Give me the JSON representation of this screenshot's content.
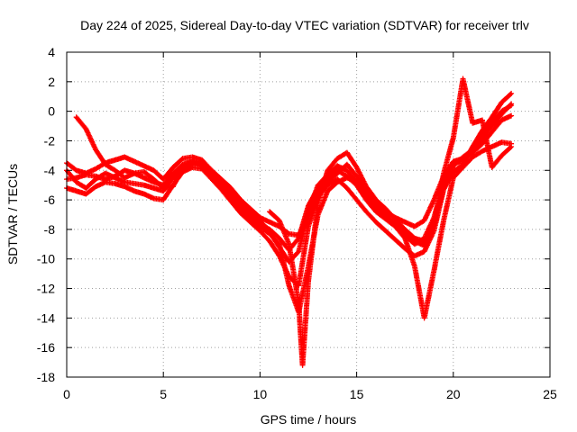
{
  "chart_data": {
    "type": "scatter",
    "title": "Day 224 of 2025, Sidereal Day-to-day VTEC variation (SDTVAR) for receiver trlv",
    "xlabel": "GPS time / hours",
    "ylabel": "SDTVAR / TECUs",
    "xlim": [
      0,
      25
    ],
    "ylim": [
      -18,
      4
    ],
    "x_ticks": [
      "0",
      "5",
      "10",
      "15",
      "20",
      "25"
    ],
    "y_ticks": [
      "4",
      "2",
      "0",
      "-2",
      "-4",
      "-6",
      "-8",
      "-10",
      "-12",
      "-14",
      "-16",
      "-18"
    ],
    "grid": true,
    "marker": "plus",
    "color": "#ff0000",
    "series": [
      {
        "x": [
          0,
          0.5,
          1,
          1.5,
          2,
          2.5,
          3,
          3.5,
          4,
          4.5,
          5,
          5.5,
          6,
          6.5,
          7,
          7.5,
          8,
          8.5,
          9,
          9.5,
          10,
          10.5,
          11,
          11.5,
          12,
          12.5,
          13,
          13.5,
          14,
          14.5,
          15,
          15.5,
          16,
          16.5,
          17,
          17.5,
          18,
          18.5,
          19,
          19.5,
          20,
          20.5,
          21,
          21.5,
          22,
          22.5,
          23
        ],
        "y": [
          -3.5,
          -4,
          -4.2,
          -3.9,
          -3.5,
          -3.3,
          -3.1,
          -3.4,
          -3.7,
          -4,
          -4.6,
          -3.8,
          -3.2,
          -3.1,
          -3.3,
          -4,
          -4.6,
          -5.2,
          -6,
          -6.6,
          -7.2,
          -7.5,
          -7.8,
          -8.3,
          -8.4,
          -7,
          -5.4,
          -4.8,
          -4.2,
          -3.6,
          -4.4,
          -5.6,
          -6.3,
          -6.8,
          -7.2,
          -7.5,
          -7.8,
          -7.4,
          -6,
          -4.4,
          -3.4,
          -3.2,
          -2.8,
          -2.2,
          -1.4,
          -0.6,
          -0.3
        ]
      },
      {
        "x": [
          0,
          0.5,
          1,
          1.5,
          2,
          2.5,
          3,
          3.5,
          4,
          4.5,
          5,
          5.5,
          6,
          6.5,
          7,
          7.5,
          8,
          8.5,
          9,
          9.5,
          10,
          10.5,
          11,
          11.5,
          12,
          12.5,
          13,
          13.5,
          14,
          14.5,
          15,
          15.5,
          16,
          16.5,
          17,
          17.5,
          18,
          18.5,
          19,
          19.5,
          20,
          20.5,
          21,
          21.5,
          22,
          22.5,
          23
        ],
        "y": [
          -4.6,
          -4.5,
          -4.3,
          -4.4,
          -4.6,
          -4.4,
          -4,
          -4.2,
          -4.5,
          -4.8,
          -5,
          -4.2,
          -3.6,
          -3.4,
          -3.7,
          -4.4,
          -5,
          -5.7,
          -6.5,
          -7.1,
          -7.6,
          -8,
          -8.6,
          -9.4,
          -8.6,
          -6.4,
          -5.2,
          -4.5,
          -4,
          -4.4,
          -5,
          -6,
          -6.8,
          -7.3,
          -7.8,
          -8.4,
          -9,
          -8.6,
          -7.2,
          -4.8,
          -3.6,
          -3.3,
          -2.8,
          -1.8,
          -0.7,
          0,
          0.4
        ]
      },
      {
        "x": [
          0,
          0.5,
          1,
          1.5,
          2,
          2.5,
          3,
          3.5,
          4,
          4.5,
          5,
          5.5,
          6,
          6.5,
          7,
          7.5,
          8,
          8.5,
          9,
          9.5,
          10,
          10.5,
          11,
          11.5,
          12,
          12.5,
          13,
          13.5,
          14,
          14.5,
          15,
          15.5,
          16,
          16.5,
          17,
          17.5,
          18,
          18.5,
          19,
          19.5,
          20,
          20.5,
          21,
          21.5,
          22,
          22.5,
          23
        ],
        "y": [
          -5.2,
          -5.4,
          -5.6,
          -5.1,
          -4.8,
          -4.9,
          -5.1,
          -5.4,
          -5.6,
          -5.9,
          -6,
          -5,
          -4.1,
          -3.8,
          -3.9,
          -4.6,
          -5.3,
          -6.1,
          -6.9,
          -7.5,
          -8.1,
          -8.8,
          -9.8,
          -11.2,
          -11.8,
          -7.8,
          -5.8,
          -5,
          -4.6,
          -5.2,
          -6,
          -6.8,
          -7.5,
          -8.1,
          -8.7,
          -9.3,
          -9.8,
          -9.5,
          -8.1,
          -5.3,
          -4.1,
          -3.6,
          -2.4,
          -1.3,
          -0.4,
          0.6,
          1.2
        ]
      },
      {
        "x": [
          0,
          0.5,
          1,
          1.5,
          2,
          2.5,
          3,
          3.5,
          4,
          4.5,
          5,
          5.5,
          6,
          6.5,
          7,
          7.5,
          8,
          8.5,
          9,
          9.5,
          10,
          10.5,
          11,
          11.5,
          12,
          12.5,
          13,
          13.5,
          14,
          14.5,
          15,
          15.5,
          16,
          16.5,
          17,
          17.5,
          18,
          18.5,
          19,
          19.5,
          20,
          20.5,
          21,
          21.5,
          22,
          22.5,
          23
        ],
        "y": [
          -4,
          -4.8,
          -5.2,
          -4.6,
          -4.2,
          -4.5,
          -4.8,
          -4.9,
          -5,
          -5.2,
          -5.4,
          -4.5,
          -3.9,
          -3.6,
          -3.5,
          -4.2,
          -4.9,
          -5.5,
          -6.2,
          -6.9,
          -7.4,
          -8.2,
          -9.2,
          -10.2,
          -9.5,
          -6.8,
          -5,
          -4.3,
          -3.7,
          -4,
          -4.8,
          -5.8,
          -6.6,
          -7.1,
          -7.6,
          -8.2,
          -8.8,
          -9.1,
          -7.8,
          -5.2,
          -3.7,
          -3.1,
          -2.6,
          -1.8,
          -1,
          -0.2,
          0.5
        ]
      },
      {
        "x": [
          0.5,
          1,
          1.5,
          2,
          2.5,
          3,
          3.5,
          4,
          4.5,
          5,
          5.5,
          6,
          6.5,
          7,
          7.5,
          8,
          8.5,
          9,
          9.5,
          10,
          10.5,
          11,
          11.5,
          12,
          12.5,
          13,
          13.5,
          14,
          14.5,
          15,
          15.5,
          16,
          16.5,
          17,
          17.5,
          18,
          18.5,
          19,
          19.5,
          20,
          20.5,
          21,
          21.5,
          22,
          22.5,
          23
        ],
        "y": [
          -0.4,
          -1.2,
          -2.6,
          -3.6,
          -4,
          -4.5,
          -4.2,
          -4.1,
          -4.6,
          -5.2,
          -5.1,
          -3.8,
          -3.4,
          -3.6,
          -4.3,
          -5.1,
          -5.8,
          -6.6,
          -7.2,
          -7.8,
          -8.3,
          -9,
          -11.8,
          -13.6,
          -10.5,
          -7,
          -5.4,
          -4.8,
          -4.5,
          -4.8,
          -5.4,
          -6.2,
          -7,
          -7.8,
          -8.6,
          -10.5,
          -14,
          -10.8,
          -7.4,
          -4.5,
          -3.8,
          -3.1,
          -2.7,
          -2.4,
          -2.1,
          -2.2
        ]
      },
      {
        "x": [
          10.5,
          11,
          11.5,
          12,
          12.2,
          12.5,
          13,
          13.5,
          14,
          14.5,
          15,
          15.5,
          16,
          16.5,
          17,
          17.5,
          18,
          18.5,
          19,
          19.5,
          20,
          20.5,
          21,
          21.5,
          22,
          22.5,
          23
        ],
        "y": [
          -6.8,
          -7.4,
          -9,
          -13,
          -17.2,
          -11.5,
          -6.2,
          -4,
          -3.2,
          -2.8,
          -3.8,
          -5.1,
          -6,
          -6.6,
          -7.3,
          -8,
          -8.6,
          -8.8,
          -7.6,
          -4.2,
          -1.8,
          2.2,
          -0.8,
          -0.6,
          -3.8,
          -3,
          -2.4
        ]
      }
    ]
  }
}
